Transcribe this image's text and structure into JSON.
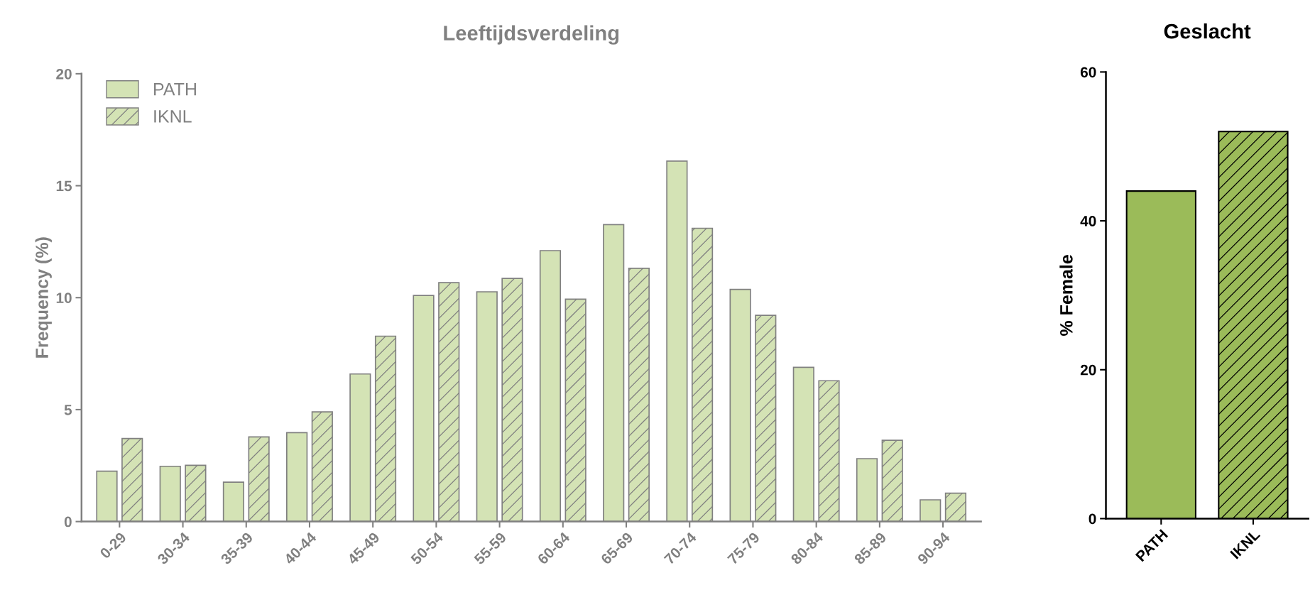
{
  "chart_data": [
    {
      "type": "bar",
      "title": "Leeftijdsverdeling",
      "ylabel": "Frequency (%)",
      "categories": [
        "0-29",
        "30-34",
        "35-39",
        "40-44",
        "45-49",
        "50-54",
        "55-59",
        "60-64",
        "65-69",
        "70-74",
        "75-79",
        "80-84",
        "85-89",
        "90-94"
      ],
      "series": [
        {
          "name": "PATH",
          "color": "#d4e3b5",
          "values": [
            2.25,
            2.47,
            1.76,
            3.97,
            6.59,
            10.1,
            10.26,
            12.1,
            13.26,
            16.1,
            10.37,
            6.89,
            2.81,
            0.97
          ]
        },
        {
          "name": "IKNL",
          "color": "#d4e3b5",
          "values": [
            3.71,
            2.51,
            3.78,
            4.9,
            8.28,
            10.67,
            10.86,
            9.93,
            11.31,
            13.1,
            9.21,
            6.29,
            3.63,
            1.27
          ]
        }
      ],
      "ylim": [
        0,
        20
      ],
      "yticks": [
        0,
        5,
        10,
        15,
        20
      ],
      "grid": false,
      "legend": "top left"
    },
    {
      "type": "bar",
      "title": "Geslacht",
      "ylabel": "% Female",
      "categories": [
        "PATH",
        "IKNL"
      ],
      "values": [
        44.0,
        52.0
      ],
      "colors": [
        "#9bbb59",
        "#9bbb59"
      ],
      "ylim": [
        0,
        60
      ],
      "yticks": [
        0,
        20,
        40,
        60
      ],
      "grid": false
    }
  ]
}
